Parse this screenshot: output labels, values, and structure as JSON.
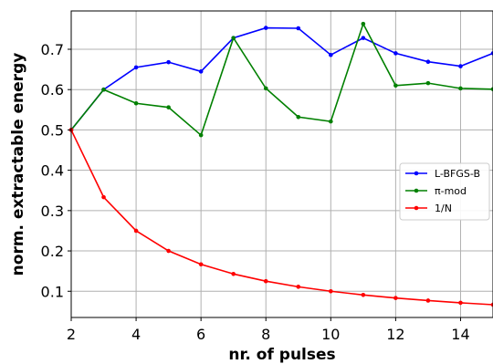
{
  "chart_data": {
    "type": "line",
    "xlabel": "nr. of pulses",
    "ylabel": "norm. extractable energy",
    "xlim": [
      2,
      15
    ],
    "ylim": [
      0.035,
      0.795
    ],
    "xticks": [
      2,
      4,
      6,
      8,
      10,
      12,
      14
    ],
    "yticks": [
      0.1,
      0.2,
      0.3,
      0.4,
      0.5,
      0.6,
      0.7
    ],
    "grid": true,
    "legend_position": "center-right",
    "series": [
      {
        "name": "L-BFGS-B",
        "color": "#0000ff",
        "x": [
          2,
          3,
          4,
          5,
          6,
          7,
          8,
          9,
          10,
          11,
          12,
          13,
          14,
          15
        ],
        "values": [
          0.5,
          0.6,
          0.655,
          0.668,
          0.645,
          0.728,
          0.753,
          0.752,
          0.686,
          0.728,
          0.69,
          0.669,
          0.658,
          0.69
        ]
      },
      {
        "name": "π-mod",
        "color": "#008000",
        "x": [
          2,
          3,
          4,
          5,
          6,
          7,
          8,
          9,
          10,
          11,
          12,
          13,
          14,
          15
        ],
        "values": [
          0.5,
          0.6,
          0.566,
          0.556,
          0.487,
          0.728,
          0.603,
          0.532,
          0.521,
          0.763,
          0.61,
          0.616,
          0.603,
          0.601
        ]
      },
      {
        "name": "1/N",
        "color": "#ff0000",
        "x": [
          2,
          3,
          4,
          5,
          6,
          7,
          8,
          9,
          10,
          11,
          12,
          13,
          14,
          15
        ],
        "values": [
          0.5,
          0.3333,
          0.25,
          0.2,
          0.1667,
          0.1429,
          0.125,
          0.1111,
          0.1,
          0.0909,
          0.0833,
          0.0769,
          0.0714,
          0.0667
        ]
      }
    ]
  }
}
